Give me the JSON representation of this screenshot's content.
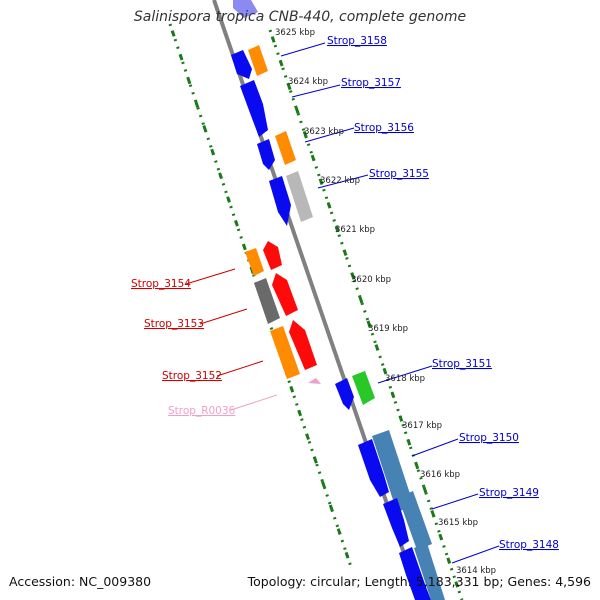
{
  "title": "Salinispora tropica CNB-440, complete genome",
  "footer": {
    "accession": "Accession: NC_009380",
    "summary": "Topology: circular; Length: 5,183,331 bp; Genes: 4,596"
  },
  "colors": {
    "blue_gene": "#0a0af0",
    "orange_gene": "#ff8c00",
    "red_gene": "#ff0a0a",
    "gray_gene": "#6a6a6a",
    "light_gray_gene": "#b8b8b8",
    "green_gene": "#28c828",
    "steel_gene": "#4682b4",
    "pink_rna": "#f0a0c8",
    "backbone": "#808080",
    "dotted_ruler": "#1a7a1a",
    "label_blue": "#0000cc",
    "label_red": "#cc0000",
    "label_pink": "#f0a0c8"
  },
  "tick_labels": [
    "3625 kbp",
    "3624 kbp",
    "3623 kbp",
    "3622 kbp",
    "3621 kbp",
    "3620 kbp",
    "3619 kbp",
    "3618 kbp",
    "3617 kbp",
    "3616 kbp",
    "3615 kbp",
    "3614 kbp"
  ],
  "gene_labels": {
    "strop_3158": "Strop_3158",
    "strop_3157": "Strop_3157",
    "strop_3156": "Strop_3156",
    "strop_3155": "Strop_3155",
    "strop_3151": "Strop_3151",
    "strop_3150": "Strop_3150",
    "strop_3149": "Strop_3149",
    "strop_3148": "Strop_3148",
    "strop_3154": "Strop_3154",
    "strop_3153": "Strop_3153",
    "strop_3152": "Strop_3152",
    "strop_r0036": "Strop_R0036"
  }
}
